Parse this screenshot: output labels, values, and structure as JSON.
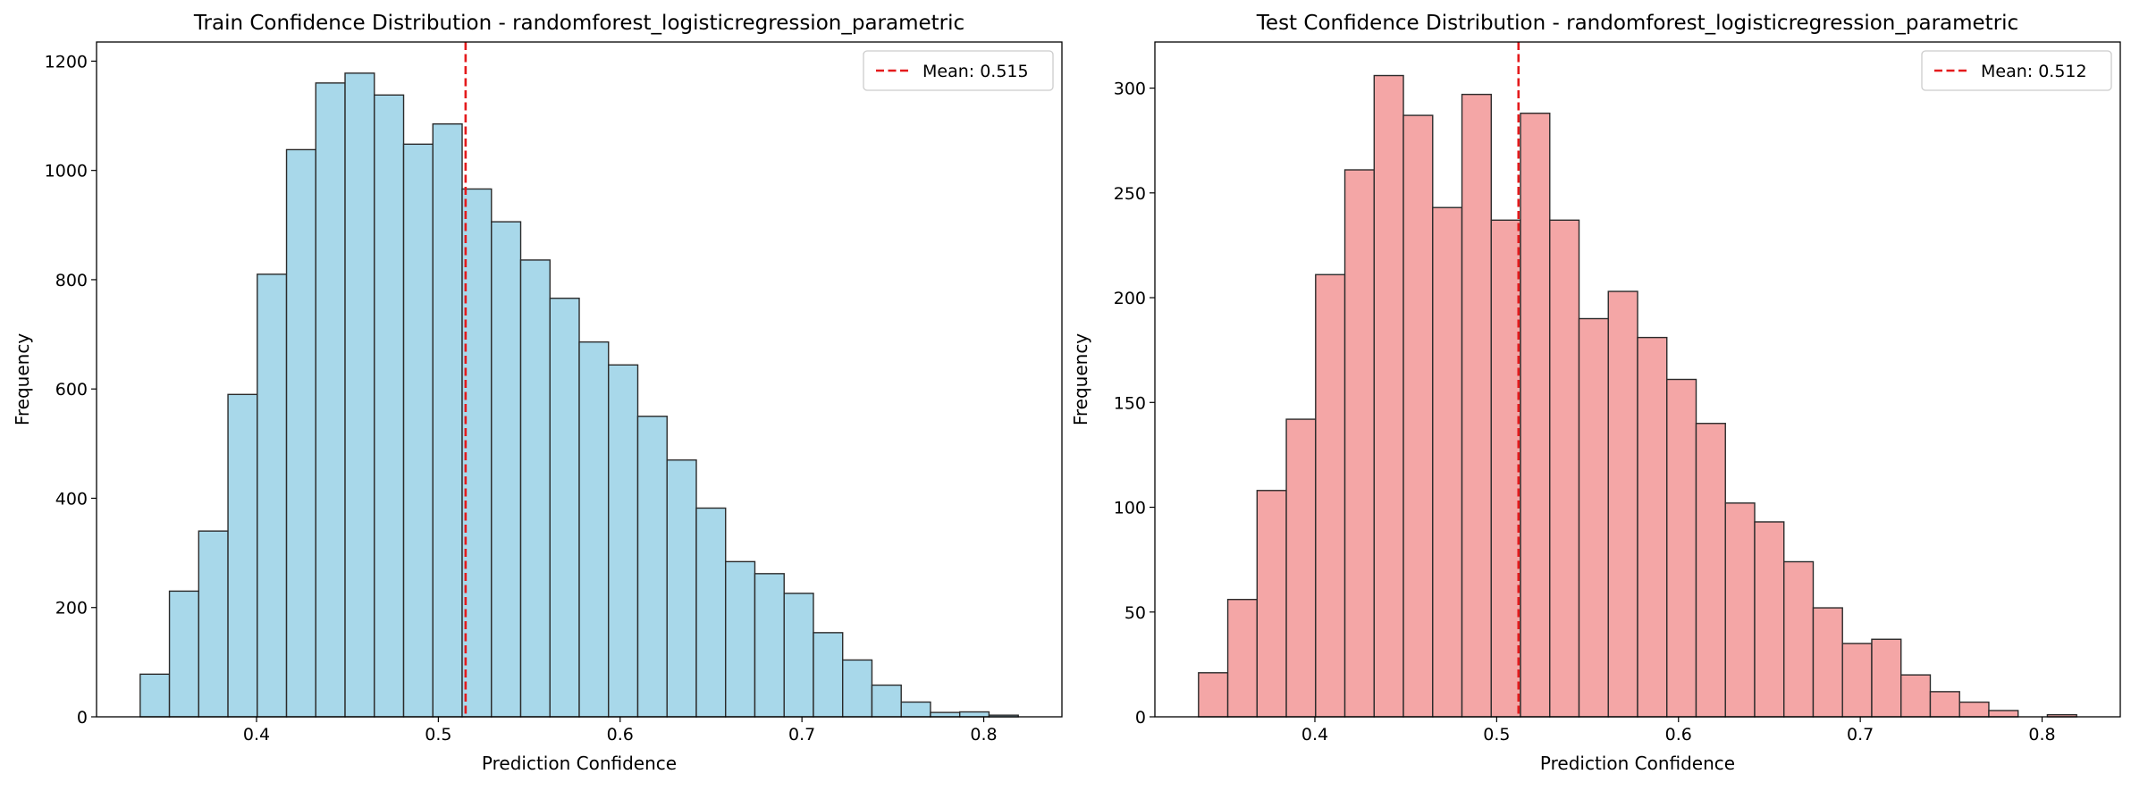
{
  "chart_data": [
    {
      "type": "bar",
      "title": "Train Confidence Distribution - randomforest_logisticregression_parametric",
      "xlabel": "Prediction Confidence",
      "ylabel": "Frequency",
      "xlim": [
        0.312,
        0.843
      ],
      "ylim": [
        0,
        1235
      ],
      "xticks": [
        "0.4",
        "0.5",
        "0.6",
        "0.7",
        "0.8"
      ],
      "yticks": [
        "0",
        "200",
        "400",
        "600",
        "800",
        "1000",
        "1200"
      ],
      "bin_start": 0.336,
      "bin_width": 0.0161,
      "values": [
        78,
        230,
        340,
        590,
        810,
        1038,
        1160,
        1178,
        1138,
        1048,
        1085,
        966,
        906,
        836,
        766,
        686,
        644,
        550,
        470,
        382,
        284,
        262,
        226,
        154,
        104,
        58,
        27,
        8,
        9,
        3
      ],
      "bar_color": "#a8d8ea",
      "mean_line": {
        "value": 0.515,
        "label": "Mean: 0.515",
        "color": "#e41a1c"
      },
      "legend_position": "top-right",
      "grid": false
    },
    {
      "type": "bar",
      "title": "Test Confidence Distribution - randomforest_logisticregression_parametric",
      "xlabel": "Prediction Confidence",
      "ylabel": "Frequency",
      "xlim": [
        0.312,
        0.843
      ],
      "ylim": [
        0,
        322
      ],
      "xticks": [
        "0.4",
        "0.5",
        "0.6",
        "0.7",
        "0.8"
      ],
      "yticks": [
        "0",
        "50",
        "100",
        "150",
        "200",
        "250",
        "300"
      ],
      "bin_start": 0.336,
      "bin_width": 0.0161,
      "values": [
        21,
        56,
        108,
        142,
        211,
        261,
        306,
        287,
        243,
        297,
        237,
        288,
        237,
        190,
        203,
        181,
        161,
        140,
        102,
        93,
        74,
        52,
        35,
        37,
        20,
        12,
        7,
        3,
        0,
        1
      ],
      "bar_color": "#f4a6a6",
      "mean_line": {
        "value": 0.512,
        "label": "Mean: 0.512",
        "color": "#e41a1c"
      },
      "legend_position": "top-right",
      "grid": false
    }
  ]
}
